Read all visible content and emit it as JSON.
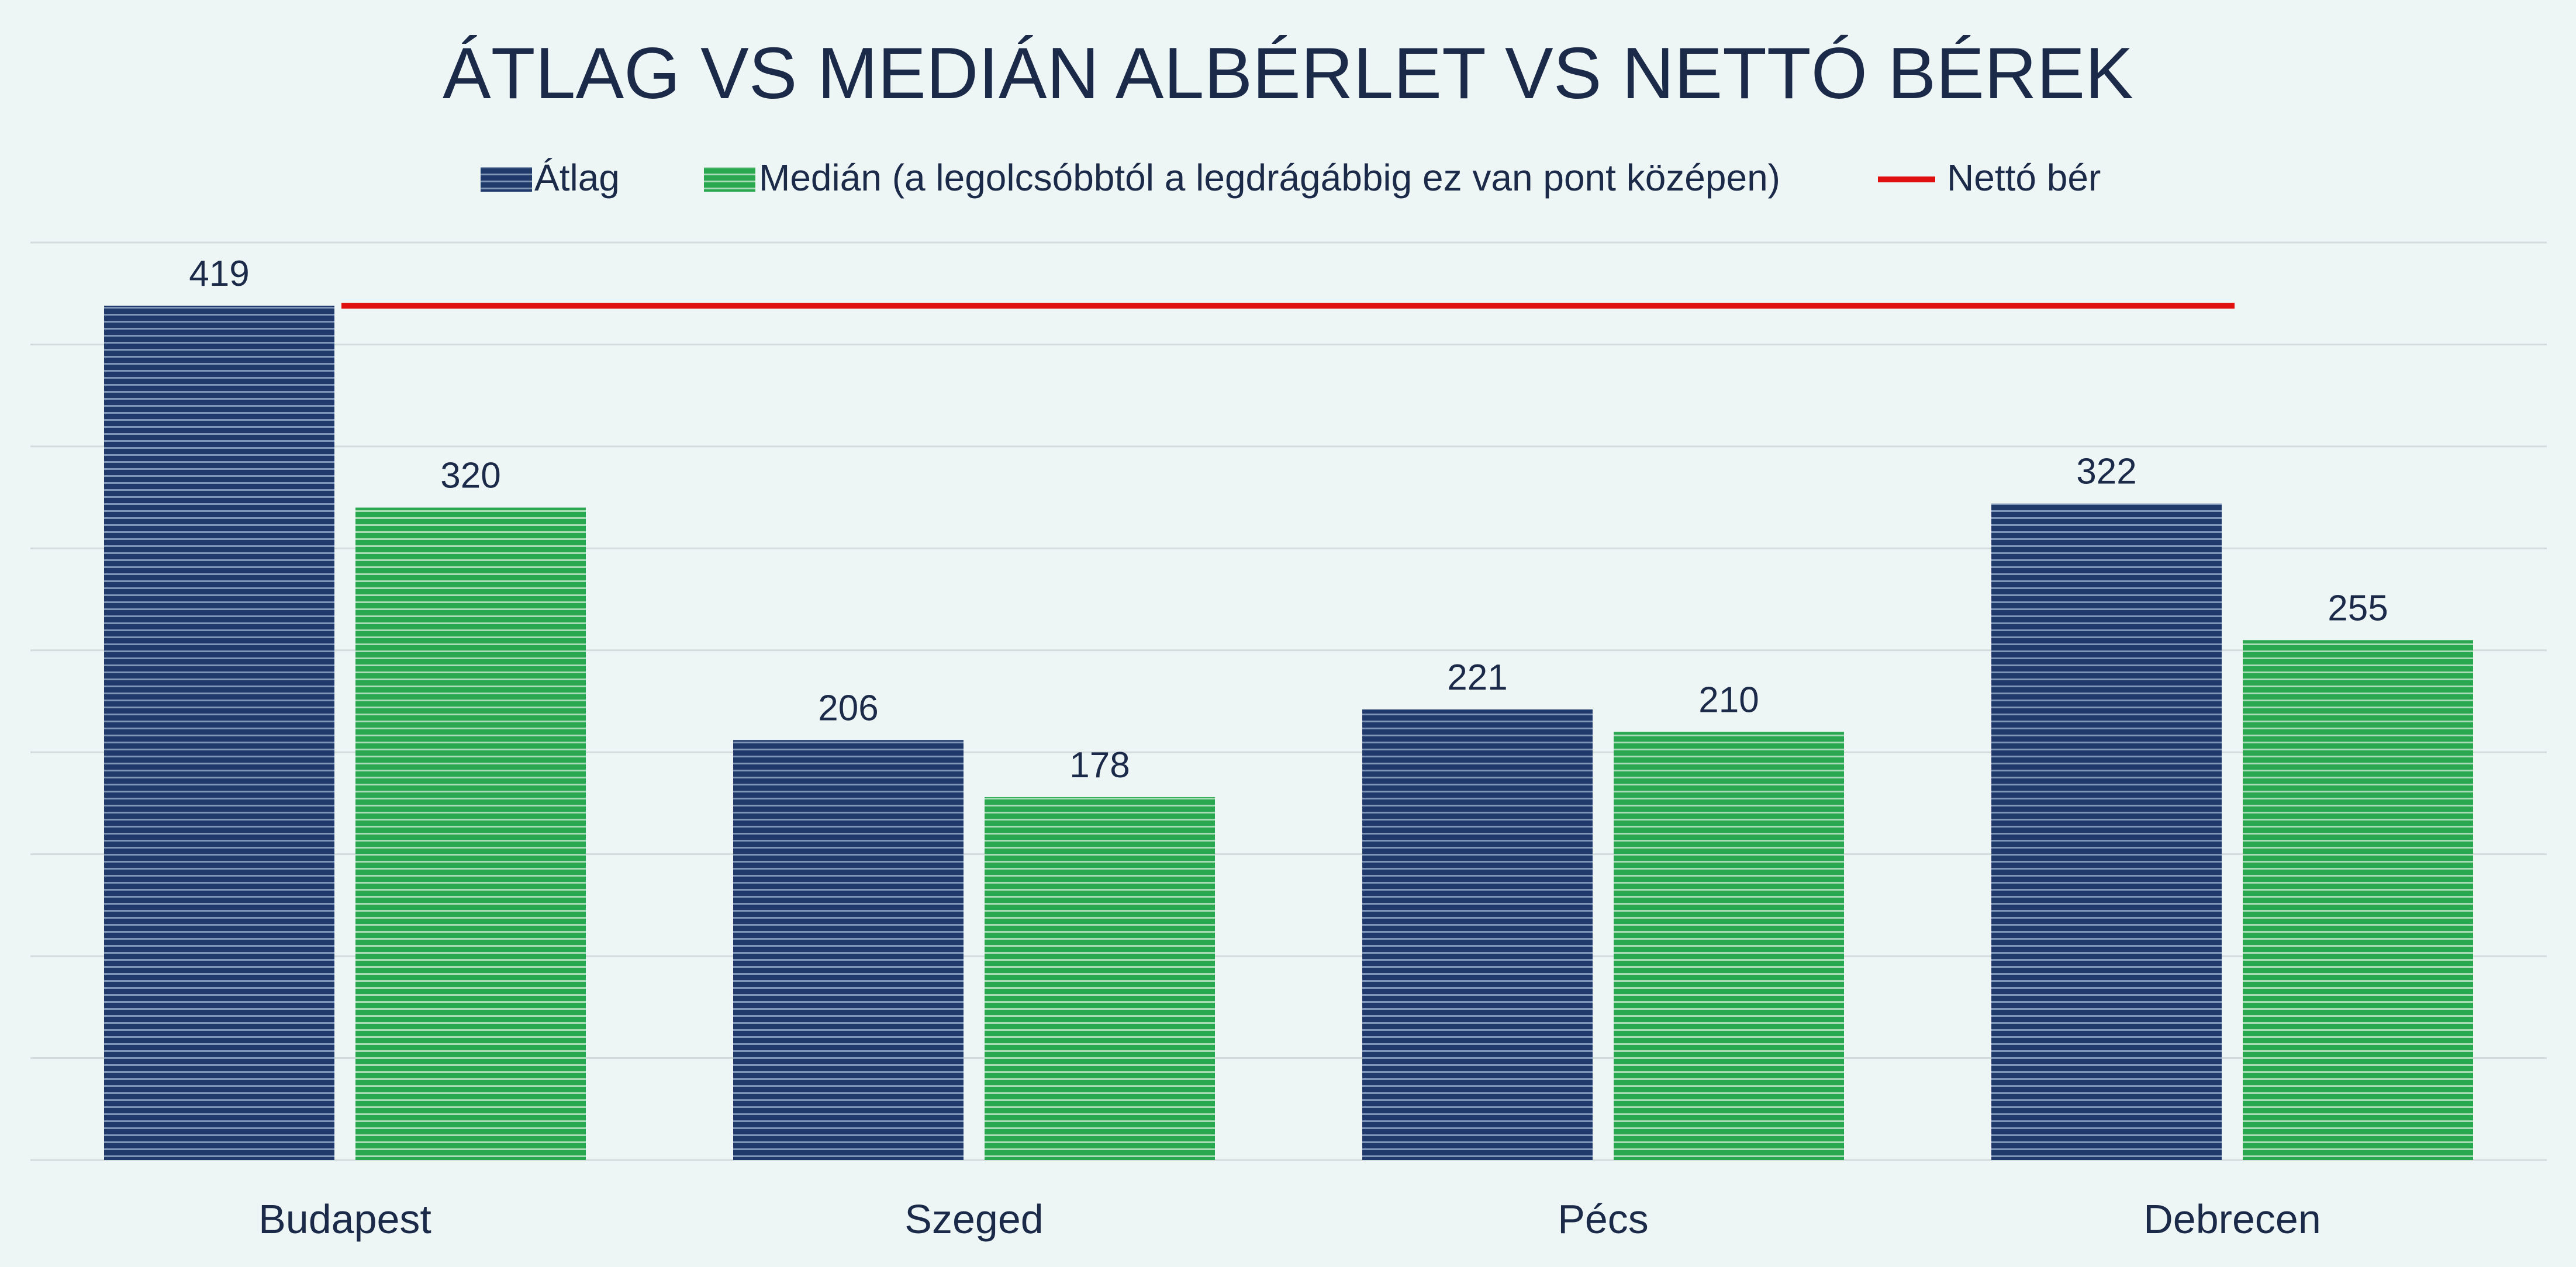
{
  "chart_data": {
    "type": "bar",
    "title": "ÁTLAG VS MEDIÁN ALBÉRLET VS NETTÓ BÉREK",
    "categories": [
      "Budapest",
      "Szeged",
      "Pécs",
      "Debrecen"
    ],
    "series": [
      {
        "name": "Átlag",
        "values": [
          419,
          206,
          221,
          322
        ],
        "color": "#1f3a6b"
      },
      {
        "name": "Medián (a legolcsóbbtól a legdrágábbig ez van pont középen)",
        "values": [
          320,
          178,
          210,
          255
        ],
        "color": "#2aa84f"
      }
    ],
    "line": {
      "name": "Nettó bér",
      "value": 419,
      "color": "#e01010"
    },
    "ylim": [
      0,
      450
    ],
    "grid": true,
    "legend": "top"
  }
}
